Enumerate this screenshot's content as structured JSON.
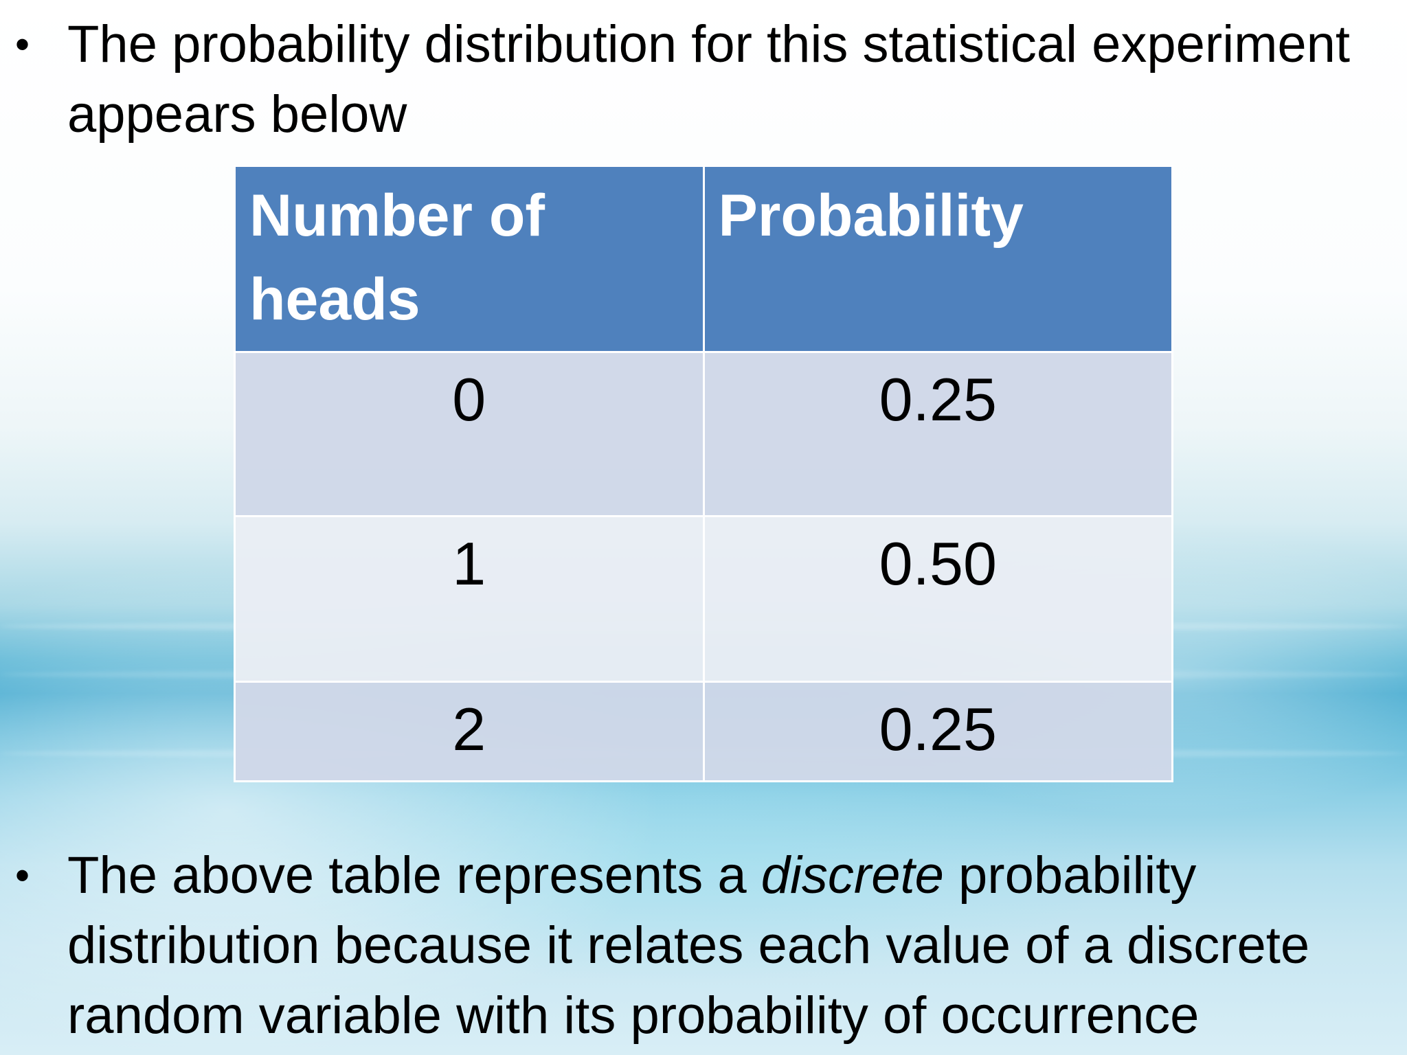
{
  "bullets": [
    {
      "symbol": "•",
      "text": "The probability distribution for this statistical experiment appears below"
    },
    {
      "symbol": "•",
      "pre": "The above table represents a ",
      "emph": "discrete",
      "post": " probability distribution because it relates each value of a discrete random variable with its probability of occurrence"
    }
  ],
  "table": {
    "headers": [
      "Number of heads",
      "Probability"
    ],
    "rows": [
      [
        "0",
        "0.25"
      ],
      [
        "1",
        "0.50"
      ],
      [
        "2",
        "0.25"
      ]
    ]
  },
  "colors": {
    "header_bg": "#4f81bd",
    "row_dark": "#d0d8e8",
    "row_light": "#e9edf4"
  }
}
